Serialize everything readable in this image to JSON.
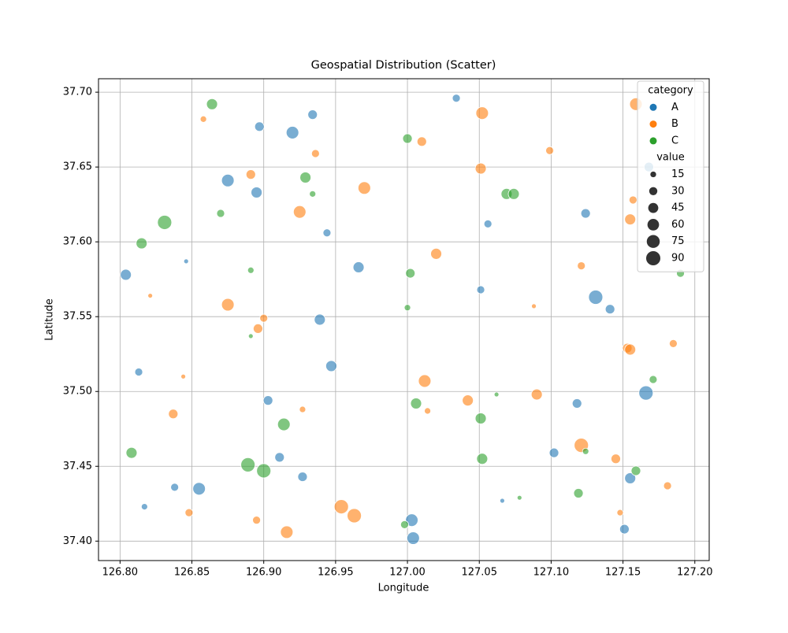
{
  "chart_data": {
    "type": "scatter",
    "title": "Geospatial Distribution (Scatter)",
    "x_label": "Longitude",
    "y_label": "Latitude",
    "xlim": [
      126.785,
      127.21
    ],
    "ylim": [
      37.387,
      37.709
    ],
    "xticks": [
      {
        "value": 126.8,
        "label": "126.80"
      },
      {
        "value": 126.85,
        "label": "126.85"
      },
      {
        "value": 126.9,
        "label": "126.90"
      },
      {
        "value": 126.95,
        "label": "126.95"
      },
      {
        "value": 127.0,
        "label": "127.00"
      },
      {
        "value": 127.05,
        "label": "127.05"
      },
      {
        "value": 127.1,
        "label": "127.10"
      },
      {
        "value": 127.15,
        "label": "127.15"
      },
      {
        "value": 127.2,
        "label": "127.20"
      }
    ],
    "yticks": [
      {
        "value": 37.4,
        "label": "37.40"
      },
      {
        "value": 37.45,
        "label": "37.45"
      },
      {
        "value": 37.5,
        "label": "37.50"
      },
      {
        "value": 37.55,
        "label": "37.55"
      },
      {
        "value": 37.6,
        "label": "37.60"
      },
      {
        "value": 37.65,
        "label": "37.65"
      },
      {
        "value": 37.7,
        "label": "37.70"
      }
    ],
    "grid": true,
    "legend": {
      "location": "upper right",
      "hue_title": "category",
      "size_title": "value",
      "sizes": [
        15,
        30,
        45,
        60,
        75,
        90
      ]
    },
    "series": [
      {
        "name": "A",
        "color": "#1f77b4",
        "x": [
          127.034,
          126.934,
          126.897,
          126.92,
          126.875,
          126.895,
          127.124,
          127.056,
          126.944,
          126.846,
          126.804,
          126.966,
          127.051,
          127.131,
          127.141,
          126.939,
          126.813,
          126.947,
          126.903,
          127.166,
          127.118,
          126.911,
          127.102,
          126.838,
          126.855,
          126.927,
          127.155,
          126.817,
          127.066,
          127.003,
          127.004,
          127.151,
          127.168
        ],
        "y": [
          37.696,
          37.685,
          37.677,
          37.673,
          37.641,
          37.633,
          37.619,
          37.612,
          37.606,
          37.587,
          37.578,
          37.583,
          37.568,
          37.563,
          37.555,
          37.548,
          37.513,
          37.517,
          37.494,
          37.499,
          37.492,
          37.456,
          37.459,
          37.436,
          37.435,
          37.443,
          37.442,
          37.423,
          37.427,
          37.414,
          37.402,
          37.408,
          37.65
        ],
        "values": [
          28,
          40,
          40,
          70,
          70,
          54,
          40,
          28,
          28,
          10,
          54,
          54,
          28,
          90,
          40,
          54,
          28,
          54,
          40,
          90,
          40,
          40,
          40,
          28,
          70,
          40,
          54,
          18,
          10,
          70,
          70,
          40,
          40
        ]
      },
      {
        "name": "B",
        "color": "#ff7f0e",
        "x": [
          126.858,
          127.052,
          127.159,
          126.936,
          127.01,
          127.099,
          126.891,
          127.051,
          126.97,
          126.925,
          127.157,
          127.155,
          127.02,
          127.121,
          126.821,
          126.875,
          126.9,
          126.896,
          127.088,
          127.153,
          127.155,
          127.185,
          126.844,
          127.012,
          127.09,
          127.042,
          126.927,
          127.014,
          126.837,
          127.121,
          127.145,
          127.181,
          126.848,
          126.954,
          126.963,
          126.895,
          126.916,
          127.148
        ],
        "y": [
          37.682,
          37.686,
          37.692,
          37.659,
          37.667,
          37.661,
          37.645,
          37.649,
          37.636,
          37.62,
          37.628,
          37.615,
          37.592,
          37.584,
          37.564,
          37.558,
          37.549,
          37.542,
          37.557,
          37.529,
          37.528,
          37.532,
          37.51,
          37.507,
          37.498,
          37.494,
          37.488,
          37.487,
          37.485,
          37.464,
          37.455,
          37.437,
          37.419,
          37.423,
          37.417,
          37.414,
          37.406,
          37.419
        ],
        "values": [
          18,
          70,
          70,
          28,
          40,
          28,
          40,
          54,
          70,
          70,
          28,
          54,
          54,
          28,
          10,
          70,
          28,
          40,
          10,
          40,
          54,
          28,
          10,
          70,
          54,
          54,
          18,
          18,
          40,
          90,
          40,
          28,
          28,
          90,
          90,
          28,
          70,
          18
        ]
      },
      {
        "name": "C",
        "color": "#2ca02c",
        "x": [
          126.864,
          127.0,
          126.929,
          126.934,
          127.069,
          127.074,
          126.831,
          126.87,
          126.815,
          126.891,
          127.002,
          127.19,
          127.0,
          126.891,
          127.171,
          127.062,
          127.006,
          127.051,
          126.914,
          126.808,
          127.124,
          127.052,
          126.889,
          126.9,
          127.159,
          127.119,
          127.078,
          126.998
        ],
        "y": [
          37.692,
          37.669,
          37.643,
          37.632,
          37.632,
          37.632,
          37.613,
          37.619,
          37.599,
          37.581,
          37.579,
          37.579,
          37.556,
          37.537,
          37.508,
          37.498,
          37.492,
          37.482,
          37.478,
          37.459,
          37.46,
          37.455,
          37.451,
          37.447,
          37.447,
          37.432,
          37.429,
          37.411
        ],
        "values": [
          54,
          40,
          54,
          18,
          54,
          54,
          90,
          28,
          54,
          18,
          40,
          28,
          18,
          10,
          28,
          10,
          54,
          54,
          70,
          54,
          18,
          54,
          90,
          90,
          40,
          40,
          10,
          28
        ]
      }
    ]
  }
}
